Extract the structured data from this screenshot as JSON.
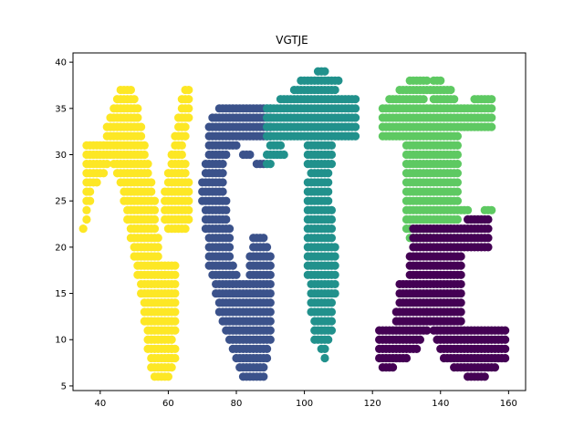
{
  "chart_data": {
    "type": "scatter",
    "title": "VGTJE",
    "xlabel": "",
    "ylabel": "",
    "xlim": [
      32,
      165
    ],
    "ylim": [
      4.5,
      41
    ],
    "xticks": [
      40,
      60,
      80,
      100,
      120,
      140,
      160
    ],
    "yticks": [
      5,
      10,
      15,
      20,
      25,
      30,
      35,
      40
    ],
    "grid": false,
    "legend": "none",
    "series": [
      {
        "color": "#fde725",
        "rows": [
          [
            6,
            56,
            60
          ],
          [
            7,
            55,
            61
          ],
          [
            8,
            55,
            61
          ],
          [
            9,
            54,
            61
          ],
          [
            10,
            54,
            61
          ],
          [
            11,
            54,
            62
          ],
          [
            12,
            53,
            62
          ],
          [
            13,
            53,
            62
          ],
          [
            14,
            53,
            62
          ],
          [
            15,
            52,
            62
          ],
          [
            16,
            52,
            62
          ],
          [
            17,
            51,
            59
          ],
          [
            18,
            51,
            57
          ],
          [
            19,
            50,
            57
          ],
          [
            20,
            50,
            57
          ],
          [
            21,
            49,
            57
          ],
          [
            22,
            49,
            56
          ],
          [
            23,
            48,
            56
          ],
          [
            24,
            48,
            56
          ],
          [
            25,
            47,
            56
          ],
          [
            26,
            47,
            55
          ],
          [
            27,
            46,
            55
          ],
          [
            28,
            45,
            54
          ],
          [
            29,
            44,
            54
          ],
          [
            30,
            43,
            53
          ],
          [
            31,
            42,
            53
          ],
          [
            32,
            42,
            52
          ],
          [
            33,
            42,
            52
          ],
          [
            34,
            43,
            51
          ],
          [
            35,
            44,
            51
          ],
          [
            36,
            45,
            50
          ],
          [
            37,
            46,
            49
          ],
          [
            22,
            35,
            35
          ],
          [
            23,
            36,
            36
          ],
          [
            24,
            36,
            36
          ],
          [
            25,
            36,
            37
          ],
          [
            26,
            36,
            37
          ],
          [
            27,
            36,
            39
          ],
          [
            28,
            36,
            41
          ],
          [
            29,
            36,
            42
          ],
          [
            30,
            36,
            42
          ],
          [
            31,
            36,
            41
          ],
          [
            8,
            60,
            62
          ],
          [
            9,
            61,
            62
          ],
          [
            17,
            58,
            62
          ],
          [
            18,
            58,
            62
          ],
          [
            22,
            60,
            65
          ],
          [
            23,
            59,
            66
          ],
          [
            24,
            59,
            66
          ],
          [
            25,
            59,
            66
          ],
          [
            26,
            59,
            66
          ],
          [
            27,
            60,
            66
          ],
          [
            28,
            60,
            65
          ],
          [
            29,
            61,
            65
          ],
          [
            30,
            61,
            64
          ],
          [
            31,
            62,
            64
          ],
          [
            32,
            62,
            65
          ],
          [
            33,
            63,
            65
          ],
          [
            34,
            63,
            66
          ],
          [
            35,
            64,
            66
          ],
          [
            36,
            64,
            66
          ],
          [
            37,
            65,
            66
          ]
        ],
        "points": []
      },
      {
        "color": "#3b528b",
        "rows": [
          [
            6,
            82,
            88
          ],
          [
            7,
            81,
            88
          ],
          [
            8,
            80,
            89
          ],
          [
            9,
            79,
            89
          ],
          [
            10,
            78,
            90
          ],
          [
            11,
            77,
            90
          ],
          [
            12,
            76,
            90
          ],
          [
            13,
            75,
            90
          ],
          [
            14,
            75,
            90
          ],
          [
            15,
            74,
            90
          ],
          [
            16,
            74,
            90
          ],
          [
            17,
            73,
            80
          ],
          [
            18,
            72,
            79
          ],
          [
            19,
            72,
            78
          ],
          [
            20,
            72,
            78
          ],
          [
            21,
            72,
            78
          ],
          [
            22,
            71,
            78
          ],
          [
            23,
            71,
            77
          ],
          [
            24,
            71,
            77
          ],
          [
            25,
            70,
            77
          ],
          [
            26,
            70,
            76
          ],
          [
            27,
            70,
            76
          ],
          [
            28,
            71,
            76
          ],
          [
            29,
            71,
            76
          ],
          [
            30,
            72,
            77
          ],
          [
            31,
            72,
            80
          ],
          [
            32,
            72,
            90
          ],
          [
            33,
            72,
            90
          ],
          [
            34,
            73,
            90
          ],
          [
            35,
            75,
            90
          ],
          [
            17,
            84,
            90
          ],
          [
            18,
            84,
            90
          ],
          [
            19,
            84,
            90
          ],
          [
            20,
            85,
            89
          ],
          [
            21,
            85,
            88
          ],
          [
            29,
            86,
            88
          ],
          [
            30,
            82,
            84
          ]
        ],
        "points": []
      },
      {
        "color": "#21918c",
        "rows": [
          [
            8,
            106,
            106
          ],
          [
            9,
            105,
            106
          ],
          [
            10,
            103,
            107
          ],
          [
            11,
            103,
            108
          ],
          [
            12,
            103,
            108
          ],
          [
            13,
            102,
            108
          ],
          [
            14,
            102,
            108
          ],
          [
            15,
            102,
            109
          ],
          [
            16,
            102,
            109
          ],
          [
            17,
            101,
            109
          ],
          [
            18,
            101,
            109
          ],
          [
            19,
            101,
            109
          ],
          [
            20,
            101,
            109
          ],
          [
            21,
            101,
            108
          ],
          [
            22,
            101,
            108
          ],
          [
            23,
            101,
            108
          ],
          [
            24,
            101,
            108
          ],
          [
            25,
            101,
            107
          ],
          [
            26,
            101,
            107
          ],
          [
            27,
            101,
            107
          ],
          [
            28,
            102,
            107
          ],
          [
            29,
            101,
            108
          ],
          [
            30,
            101,
            108
          ],
          [
            31,
            101,
            108
          ],
          [
            32,
            89,
            115
          ],
          [
            33,
            89,
            115
          ],
          [
            34,
            89,
            115
          ],
          [
            35,
            89,
            115
          ],
          [
            36,
            93,
            115
          ],
          [
            37,
            97,
            109
          ],
          [
            38,
            99,
            110
          ],
          [
            39,
            104,
            106
          ],
          [
            30,
            89,
            94
          ],
          [
            31,
            90,
            93
          ],
          [
            29,
            89,
            90
          ]
        ],
        "points": []
      },
      {
        "color": "#5ec962",
        "rows": [
          [
            21,
            131,
            137
          ],
          [
            22,
            130,
            143
          ],
          [
            23,
            130,
            145
          ],
          [
            24,
            130,
            145
          ],
          [
            25,
            130,
            145
          ],
          [
            26,
            130,
            145
          ],
          [
            27,
            130,
            145
          ],
          [
            28,
            130,
            145
          ],
          [
            29,
            130,
            145
          ],
          [
            30,
            130,
            145
          ],
          [
            31,
            130,
            145
          ],
          [
            32,
            123,
            145
          ],
          [
            33,
            123,
            155
          ],
          [
            34,
            123,
            155
          ],
          [
            35,
            123,
            155
          ],
          [
            36,
            125,
            135
          ],
          [
            37,
            128,
            136
          ],
          [
            38,
            131,
            136
          ],
          [
            24,
            146,
            148
          ],
          [
            24,
            153,
            155
          ],
          [
            36,
            138,
            144
          ],
          [
            37,
            137,
            143
          ],
          [
            38,
            138,
            140
          ],
          [
            36,
            150,
            155
          ]
        ],
        "points": []
      },
      {
        "color": "#440154",
        "rows": [
          [
            6,
            148,
            153
          ],
          [
            7,
            144,
            156
          ],
          [
            8,
            141,
            159
          ],
          [
            9,
            140,
            159
          ],
          [
            10,
            139,
            159
          ],
          [
            11,
            138,
            159
          ],
          [
            12,
            137,
            146
          ],
          [
            13,
            136,
            146
          ],
          [
            14,
            128,
            146
          ],
          [
            15,
            128,
            146
          ],
          [
            16,
            128,
            146
          ],
          [
            17,
            131,
            146
          ],
          [
            18,
            131,
            146
          ],
          [
            19,
            131,
            146
          ],
          [
            20,
            132,
            154
          ],
          [
            21,
            132,
            154
          ],
          [
            22,
            132,
            154
          ],
          [
            23,
            148,
            154
          ],
          [
            7,
            123,
            126
          ],
          [
            8,
            122,
            130
          ],
          [
            9,
            122,
            133
          ],
          [
            10,
            122,
            134
          ],
          [
            11,
            122,
            136
          ],
          [
            12,
            127,
            136
          ],
          [
            13,
            127,
            136
          ]
        ],
        "points": []
      }
    ]
  }
}
